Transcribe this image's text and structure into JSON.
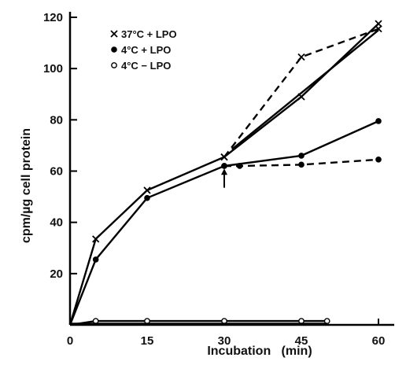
{
  "chart_data": {
    "type": "line",
    "title": "",
    "xlabel": "Incubation   (min)",
    "ylabel": "cpm/µg cell protein",
    "xlim": [
      0,
      60
    ],
    "ylim": [
      0,
      120
    ],
    "x_ticks": [
      "0",
      "15",
      "30",
      "45",
      "60"
    ],
    "y_ticks": [
      "20",
      "40",
      "60",
      "80",
      "100",
      "120"
    ],
    "legend_position": "top-left",
    "series": [
      {
        "name": "37°C + LPO",
        "marker": "x",
        "line": "solid",
        "x": [
          0,
          5,
          15,
          30,
          45,
          60
        ],
        "y": [
          0,
          33.5,
          52.5,
          65.5,
          89,
          117.5
        ]
      },
      {
        "name": "4°C + LPO",
        "marker": "filled",
        "line": "solid",
        "x": [
          0,
          5,
          15,
          30,
          45,
          60
        ],
        "y": [
          0,
          25.5,
          49.5,
          62,
          66,
          79.5
        ]
      },
      {
        "name": "4°C − LPO",
        "marker": "open",
        "line": "solid",
        "x": [
          0,
          5,
          15,
          30,
          45,
          50
        ],
        "y": [
          0,
          1.5,
          1.5,
          1.5,
          1.5,
          1.5
        ]
      },
      {
        "marker": "x",
        "line": "dashed",
        "x": [
          30,
          45,
          60
        ],
        "y": [
          65.5,
          104.5,
          115.5
        ]
      },
      {
        "marker": "filled",
        "line": "dashed",
        "x": [
          30,
          33,
          45,
          60
        ],
        "y": [
          62,
          62,
          62.5,
          64.5
        ]
      },
      {
        "marker": "none",
        "line": "solid",
        "x": [
          31.5,
          60
        ],
        "y": [
          68.5,
          115
        ]
      },
      {
        "marker": "none",
        "line": "solid",
        "x": [
          0,
          50
        ],
        "y": [
          0.5,
          0.5
        ]
      }
    ],
    "annotations": [
      {
        "type": "arrow-up",
        "x": 30,
        "y_tip": 61,
        "y_tail": 53.5
      }
    ]
  }
}
